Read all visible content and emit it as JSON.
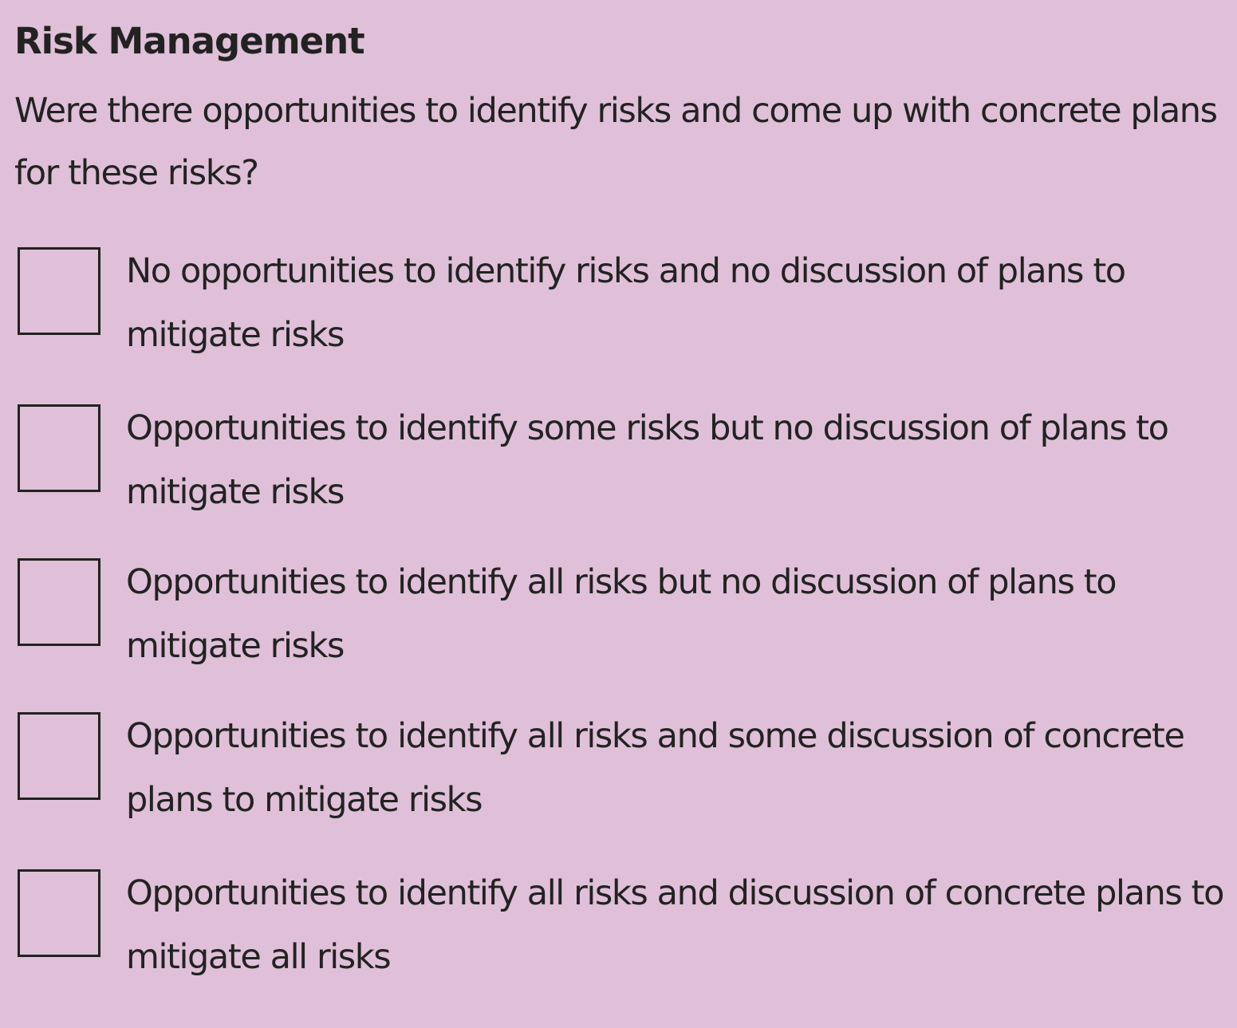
{
  "section": {
    "title": "Risk Management",
    "question": "Were there opportunities to identify risks and come up with concrete plans for these risks?"
  },
  "options": [
    {
      "label": "No opportunities to identify risks and no discussion of plans to mitigate risks",
      "checked": false
    },
    {
      "label": "Opportunities to identify some risks but no discussion of plans to mitigate risks",
      "checked": false
    },
    {
      "label": "Opportunities to identify all risks but no discussion of plans to mitigate risks",
      "checked": false
    },
    {
      "label": "Opportunities to identify all risks and some discussion of concrete plans to mitigate risks",
      "checked": false
    },
    {
      "label": "Opportunities to identify all risks and discussion of concrete plans to mitigate all risks",
      "checked": false
    }
  ]
}
